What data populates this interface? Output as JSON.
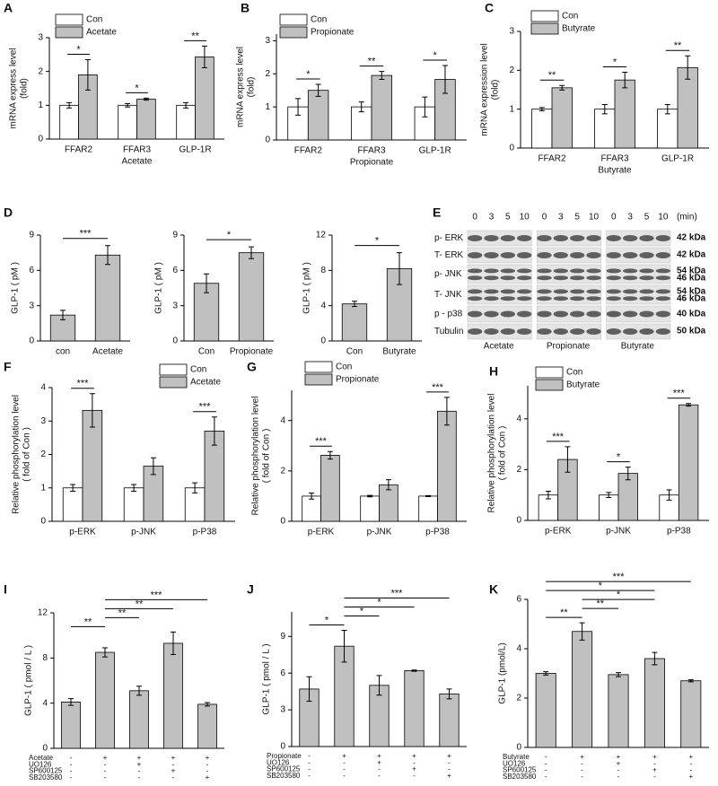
{
  "chart_data": [
    {
      "type": "bar",
      "label": "A",
      "ylabel": [
        "mRNA express level",
        "(fold)"
      ],
      "xlabel": "Acetate",
      "categories": [
        "FFAR2",
        "FFAR3",
        "GLP-1R"
      ],
      "series": [
        {
          "name": "Con",
          "color": "#ffffff",
          "values": [
            1,
            1,
            1
          ],
          "errors": [
            0.08,
            0.05,
            0.08
          ]
        },
        {
          "name": "Acetate",
          "color": "#c0c0c0",
          "values": [
            1.9,
            1.18,
            2.43
          ],
          "errors": [
            0.45,
            0.03,
            0.32
          ]
        }
      ],
      "ylim": [
        0,
        3
      ],
      "yticks": [
        0,
        1,
        2,
        3
      ],
      "significance": [
        "*",
        "*",
        "**"
      ]
    },
    {
      "type": "bar",
      "label": "B",
      "ylabel": [
        "mRNA express level",
        "(fold)"
      ],
      "xlabel": "Propionate",
      "categories": [
        "FFAR2",
        "FFAR3",
        "GLP-1R"
      ],
      "series": [
        {
          "name": "Con",
          "color": "#ffffff",
          "values": [
            1,
            1,
            1
          ],
          "errors": [
            0.25,
            0.15,
            0.3
          ]
        },
        {
          "name": "Propionate",
          "color": "#c0c0c0",
          "values": [
            1.5,
            1.95,
            1.83
          ],
          "errors": [
            0.18,
            0.12,
            0.42
          ]
        }
      ],
      "ylim": [
        0,
        3.2
      ],
      "yticks": [
        0,
        1,
        2,
        3
      ],
      "significance": [
        "*",
        "**",
        "*"
      ]
    },
    {
      "type": "bar",
      "label": "C",
      "ylabel": [
        "mRNA expression level",
        "(fold)"
      ],
      "xlabel": "Butyrate",
      "categories": [
        "FFAR2",
        "FFAR3",
        "GLP-1R"
      ],
      "series": [
        {
          "name": "Con",
          "color": "#ffffff",
          "values": [
            1,
            1,
            1
          ],
          "errors": [
            0.04,
            0.12,
            0.12
          ]
        },
        {
          "name": "Butyrate",
          "color": "#c0c0c0",
          "values": [
            1.55,
            1.75,
            2.07
          ],
          "errors": [
            0.06,
            0.2,
            0.3
          ]
        }
      ],
      "ylim": [
        0,
        3
      ],
      "yticks": [
        0,
        1,
        2,
        3
      ],
      "significance": [
        "**",
        "*",
        "**"
      ]
    },
    {
      "type": "bar",
      "label": "D",
      "ylabel": [
        "GLP-1 ( pM )"
      ],
      "categories": [
        "con",
        "Acetate"
      ],
      "values": [
        2.2,
        7.3
      ],
      "errors": [
        0.4,
        0.8
      ],
      "color": "#c0c0c0",
      "ylim": [
        0,
        9
      ],
      "yticks": [
        0,
        3,
        6,
        9
      ],
      "significance": [
        "***"
      ]
    },
    {
      "type": "bar",
      "ylabel": [
        "GLP-1 ( pM )"
      ],
      "categories": [
        "Con",
        "Propionate"
      ],
      "values": [
        4.9,
        7.5
      ],
      "errors": [
        0.8,
        0.5
      ],
      "color": "#c0c0c0",
      "ylim": [
        0,
        9
      ],
      "yticks": [
        0,
        3,
        6,
        9
      ],
      "significance": [
        "*"
      ]
    },
    {
      "type": "bar",
      "ylabel": [
        "GLP-1 ( pM )"
      ],
      "categories": [
        "Con",
        "Butyrate"
      ],
      "values": [
        4.2,
        8.2
      ],
      "errors": [
        0.3,
        1.8
      ],
      "color": "#c0c0c0",
      "ylim": [
        0,
        12
      ],
      "yticks": [
        0,
        4,
        8,
        12
      ],
      "significance": [
        "*"
      ]
    },
    {
      "type": "blot",
      "label": "E",
      "times": [
        [
          "0",
          "3",
          "5",
          "10"
        ],
        [
          "0",
          "3",
          "5",
          "10"
        ],
        [
          "0",
          "3",
          "5",
          "10"
        ]
      ],
      "unit": "(min)",
      "rows": [
        "p- ERK",
        "T- ERK",
        "p- JNK",
        "T- JNK",
        "p - p38",
        "Tubulin"
      ],
      "markers": [
        "42 kDa",
        "42 kDa",
        "54 kDa",
        "46 kDa",
        "54 kDa",
        "46 kDa",
        "40 kDa",
        "50 kDa"
      ],
      "groups": [
        "Acetate",
        "Propionate",
        "Butyrate"
      ]
    },
    {
      "type": "bar",
      "label": "F",
      "ylabel": [
        "Relative phosphorylation level",
        "( fold of Con )"
      ],
      "categories": [
        "p-ERK",
        "p-JNK",
        "p-P38"
      ],
      "series": [
        {
          "name": "Con",
          "color": "#ffffff",
          "values": [
            1,
            1,
            1
          ],
          "errors": [
            0.1,
            0.1,
            0.15
          ]
        },
        {
          "name": "Acetate",
          "color": "#c0c0c0",
          "values": [
            3.32,
            1.65,
            2.7
          ],
          "errors": [
            0.5,
            0.25,
            0.42
          ]
        }
      ],
      "ylim": [
        0,
        4
      ],
      "yticks": [
        0,
        1,
        2,
        3,
        4
      ],
      "significance": [
        "***",
        null,
        "***"
      ]
    },
    {
      "type": "bar",
      "label": "G",
      "ylabel": [
        "Relative phosphorylation level",
        "( fold of Con )"
      ],
      "categories": [
        "p-ERK",
        "p-JNK",
        "p-P38"
      ],
      "series": [
        {
          "name": "Con",
          "color": "#ffffff",
          "values": [
            1,
            1,
            1
          ],
          "errors": [
            0.12,
            0.03,
            0.02
          ]
        },
        {
          "name": "Propionate",
          "color": "#c0c0c0",
          "values": [
            2.62,
            1.45,
            4.37
          ],
          "errors": [
            0.15,
            0.2,
            0.55
          ]
        }
      ],
      "ylim": [
        0,
        5.2
      ],
      "yticks": [
        0,
        2,
        4
      ],
      "significance": [
        "***",
        null,
        "***"
      ]
    },
    {
      "type": "bar",
      "label": "H",
      "ylabel": [
        "Relative phosphorylation level",
        "( fold of Con )"
      ],
      "categories": [
        "p-ERK",
        "p-JNK",
        "p-P38"
      ],
      "series": [
        {
          "name": "Con",
          "color": "#ffffff",
          "values": [
            1,
            1,
            1
          ],
          "errors": [
            0.15,
            0.1,
            0.2
          ]
        },
        {
          "name": "Butyrate",
          "color": "#c0c0c0",
          "values": [
            2.4,
            1.85,
            4.55
          ],
          "errors": [
            0.5,
            0.25,
            0.05
          ]
        }
      ],
      "ylim": [
        0,
        5.3
      ],
      "yticks": [
        0,
        2,
        4
      ],
      "significance": [
        "***",
        "*",
        "***"
      ]
    },
    {
      "type": "bar",
      "label": "I",
      "ylabel": [
        "GLP-1 ( pmol / L )"
      ],
      "values": [
        4.1,
        8.5,
        5.1,
        9.3,
        3.9
      ],
      "errors": [
        0.3,
        0.4,
        0.4,
        1.0,
        0.15
      ],
      "color": "#c0c0c0",
      "ylim": [
        0,
        12
      ],
      "yticks": [
        0,
        4,
        8,
        12
      ],
      "significance": [
        "**",
        "**",
        "**",
        "***"
      ],
      "treatments": [
        {
          "name": "Acetate",
          "marks": [
            "-",
            "+",
            "+",
            "+",
            "+"
          ]
        },
        {
          "name": "UO126",
          "marks": [
            "-",
            "-",
            "+",
            "-",
            "-"
          ]
        },
        {
          "name": "SP600125",
          "marks": [
            "-",
            "-",
            "-",
            "+",
            "-"
          ]
        },
        {
          "name": "SB203580",
          "marks": [
            "-",
            "-",
            "-",
            "-",
            "+"
          ]
        }
      ]
    },
    {
      "type": "bar",
      "label": "J",
      "ylabel": [
        "GLP-1 ( pmol / L )"
      ],
      "values": [
        4.7,
        8.2,
        5.0,
        6.2,
        4.3
      ],
      "errors": [
        1.0,
        1.3,
        0.8,
        0.05,
        0.4
      ],
      "color": "#c0c0c0",
      "ylim": [
        0,
        11
      ],
      "yticks": [
        0,
        3,
        6,
        9
      ],
      "significance": [
        "*",
        "*",
        "*",
        "***"
      ],
      "treatments": [
        {
          "name": "Propionate",
          "marks": [
            "-",
            "+",
            "+",
            "+",
            "+"
          ]
        },
        {
          "name": "UO126",
          "marks": [
            "-",
            "-",
            "+",
            "-",
            "-"
          ]
        },
        {
          "name": "SP600125",
          "marks": [
            "-",
            "-",
            "-",
            "+",
            "-"
          ]
        },
        {
          "name": "SB203580",
          "marks": [
            "-",
            "-",
            "-",
            "-",
            "+"
          ]
        }
      ]
    },
    {
      "type": "bar",
      "label": "K",
      "ylabel": [
        "GLP-1 (pmol/L)"
      ],
      "values": [
        3.0,
        4.7,
        2.95,
        3.6,
        2.7
      ],
      "errors": [
        0.07,
        0.35,
        0.08,
        0.25,
        0.04
      ],
      "color": "#c0c0c0",
      "ylim": [
        0,
        6
      ],
      "yticks": [
        0,
        2,
        4,
        6
      ],
      "significance": [
        "**",
        "**",
        "*",
        "*",
        "***"
      ],
      "treatments": [
        {
          "name": "Butyrate",
          "marks": [
            "-",
            "+",
            "+",
            "+",
            "+"
          ]
        },
        {
          "name": "UO126",
          "marks": [
            "-",
            "-",
            "+",
            "-",
            "-"
          ]
        },
        {
          "name": "SP600125",
          "marks": [
            "-",
            "-",
            "-",
            "+",
            "-"
          ]
        },
        {
          "name": "SB203580",
          "marks": [
            "-",
            "-",
            "-",
            "-",
            "+"
          ]
        }
      ]
    }
  ]
}
